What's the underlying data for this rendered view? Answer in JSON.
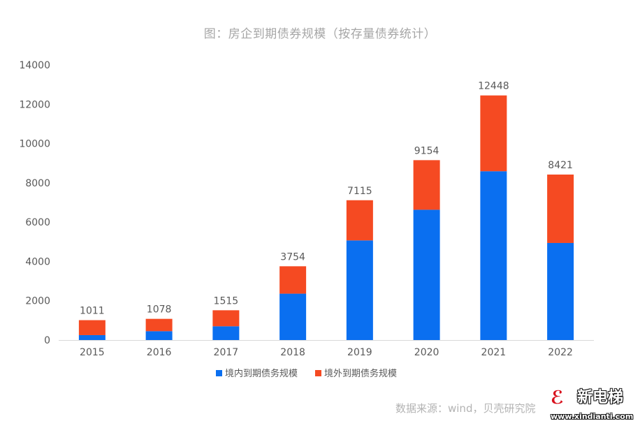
{
  "chart_data": {
    "type": "bar",
    "stacked": true,
    "title": "图：房企到期债券规模（按存量债券统计）",
    "categories": [
      "2015",
      "2016",
      "2017",
      "2018",
      "2019",
      "2020",
      "2021",
      "2022"
    ],
    "series": [
      {
        "name": "境内到期债务规模",
        "color": "#0a6ff0",
        "values": [
          250,
          450,
          700,
          2360,
          5070,
          6630,
          8590,
          4940
        ]
      },
      {
        "name": "境外到期债务规模",
        "color": "#f54a22",
        "values": [
          761,
          628,
          815,
          1394,
          2045,
          2524,
          3858,
          3481
        ]
      }
    ],
    "totals": [
      1011,
      1078,
      1515,
      3754,
      7115,
      9154,
      12448,
      8421
    ],
    "ylim": [
      0,
      14000
    ],
    "yticks": [
      0,
      2000,
      4000,
      6000,
      8000,
      10000,
      12000,
      14000
    ],
    "grid": false,
    "legend": "bottom",
    "xlabel": "",
    "ylabel": ""
  },
  "source": "数据来源：wind，贝壳研究院",
  "watermark": {
    "name": "新电梯",
    "url": "www.xindianti.com"
  }
}
